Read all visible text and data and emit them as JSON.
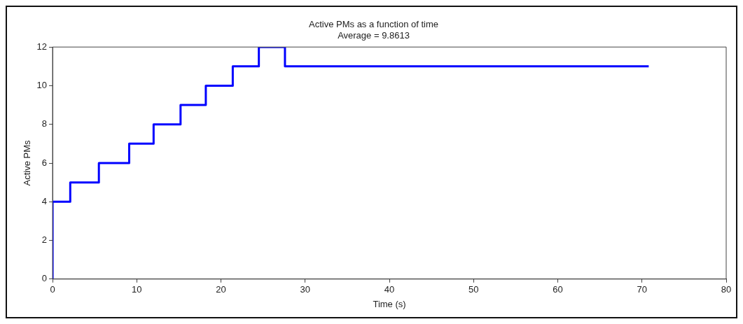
{
  "chart_data": {
    "type": "step",
    "title": "Active PMs as a function of time",
    "subtitle": "Average = 9.8613",
    "xlabel": "Time (s)",
    "ylabel": "Active PMs",
    "x": [
      0,
      0,
      2.1,
      5.5,
      9.1,
      12,
      15.2,
      18.2,
      21.4,
      24.5,
      27.6,
      70.8
    ],
    "series": [
      {
        "color": "#0000ff",
        "values": [
          0,
          4,
          5,
          6,
          7,
          8,
          9,
          10,
          11,
          12,
          11,
          11
        ]
      }
    ],
    "xlim": [
      0,
      80
    ],
    "xticks": [
      0,
      10,
      20,
      30,
      40,
      50,
      60,
      70,
      80
    ],
    "ylim": [
      0,
      12
    ],
    "yticks": [
      0,
      2,
      4,
      6,
      8,
      10,
      12
    ],
    "grid": false,
    "legend": false,
    "marker": "none",
    "line_style": "solid"
  }
}
